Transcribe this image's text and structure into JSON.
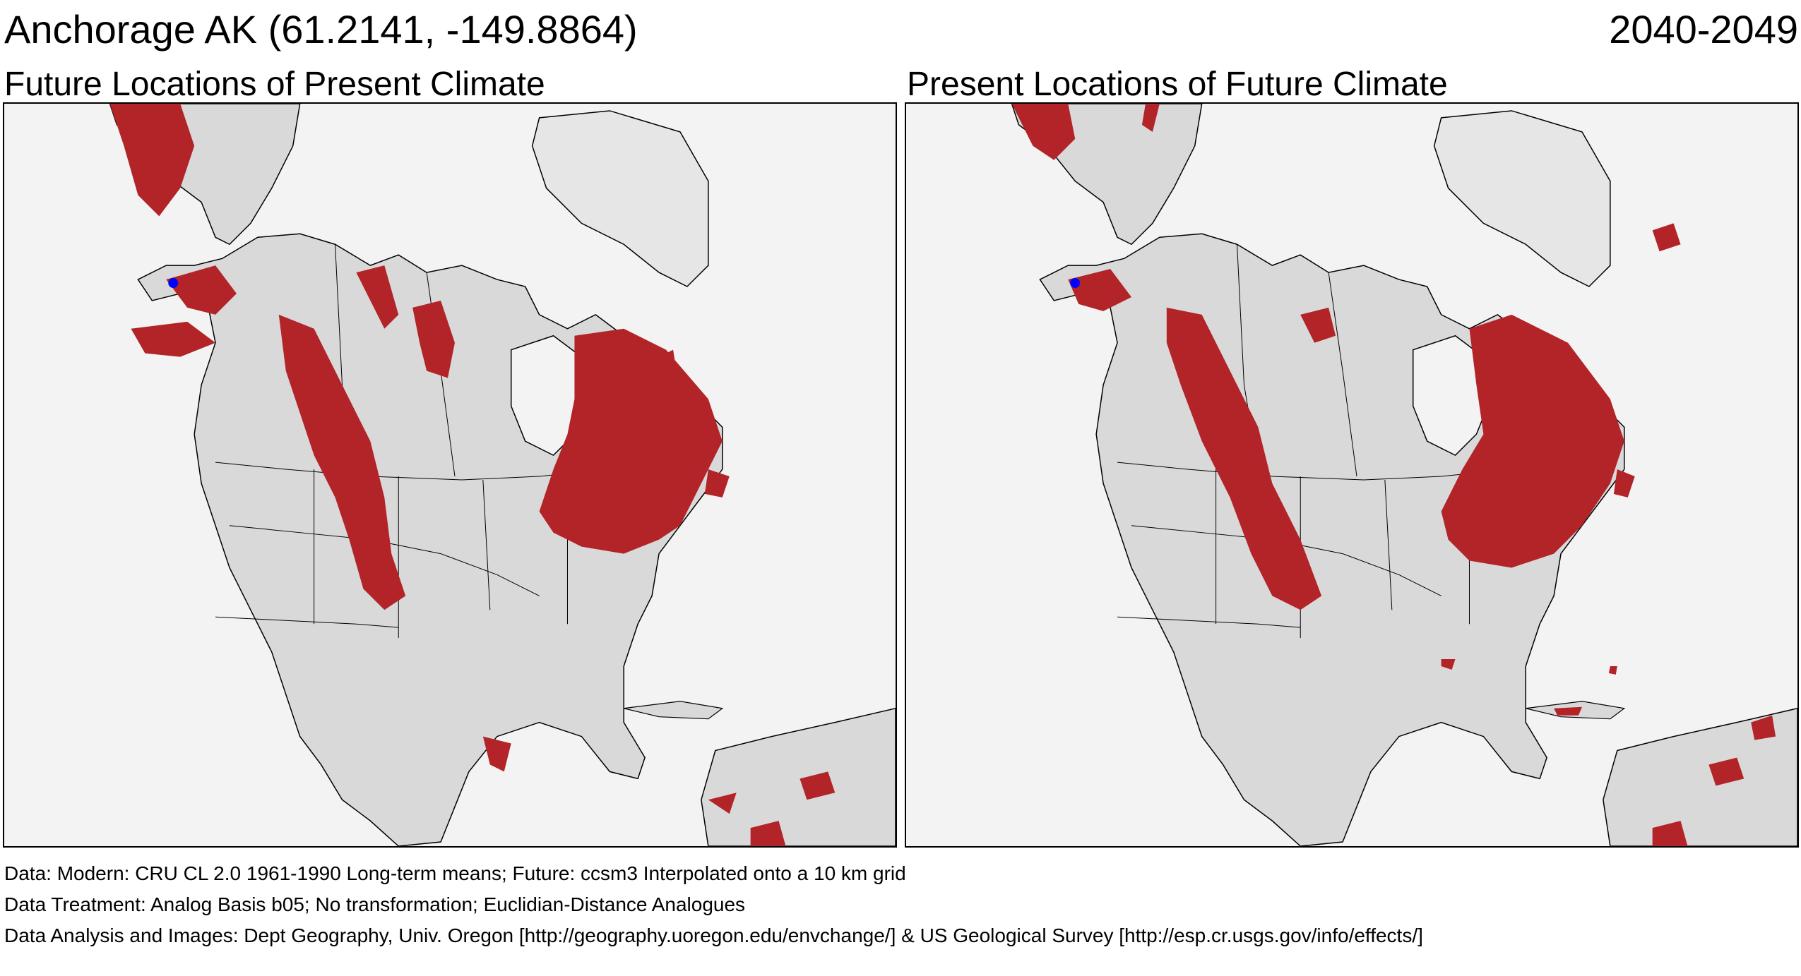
{
  "header": {
    "location": "Anchorage AK  (61.2141, -149.8864)",
    "period": "2040-2049"
  },
  "panels": [
    {
      "title": "Future Locations of Present Climate"
    },
    {
      "title": "Present Locations of Future Climate"
    }
  ],
  "footer": {
    "data": "Data:  Modern: CRU CL 2.0 1961-1990 Long-term means; Future: ccsm3 Interpolated onto a 10 km grid",
    "treatment": "Data Treatment:  Analog Basis b05; No transformation; Euclidian-Distance Analogues",
    "analysis": "Data Analysis and Images:  Dept Geography, Univ. Oregon [http://geography.uoregon.edu/envchange/] & US Geological Survey [http://esp.cr.usgs.gov/info/effects/]"
  },
  "colors": {
    "analog_region": "#b22428",
    "land": "#d9d9d9",
    "ocean": "#f3f3f3",
    "marker": "#0000ff",
    "boundaries": "#000000"
  }
}
